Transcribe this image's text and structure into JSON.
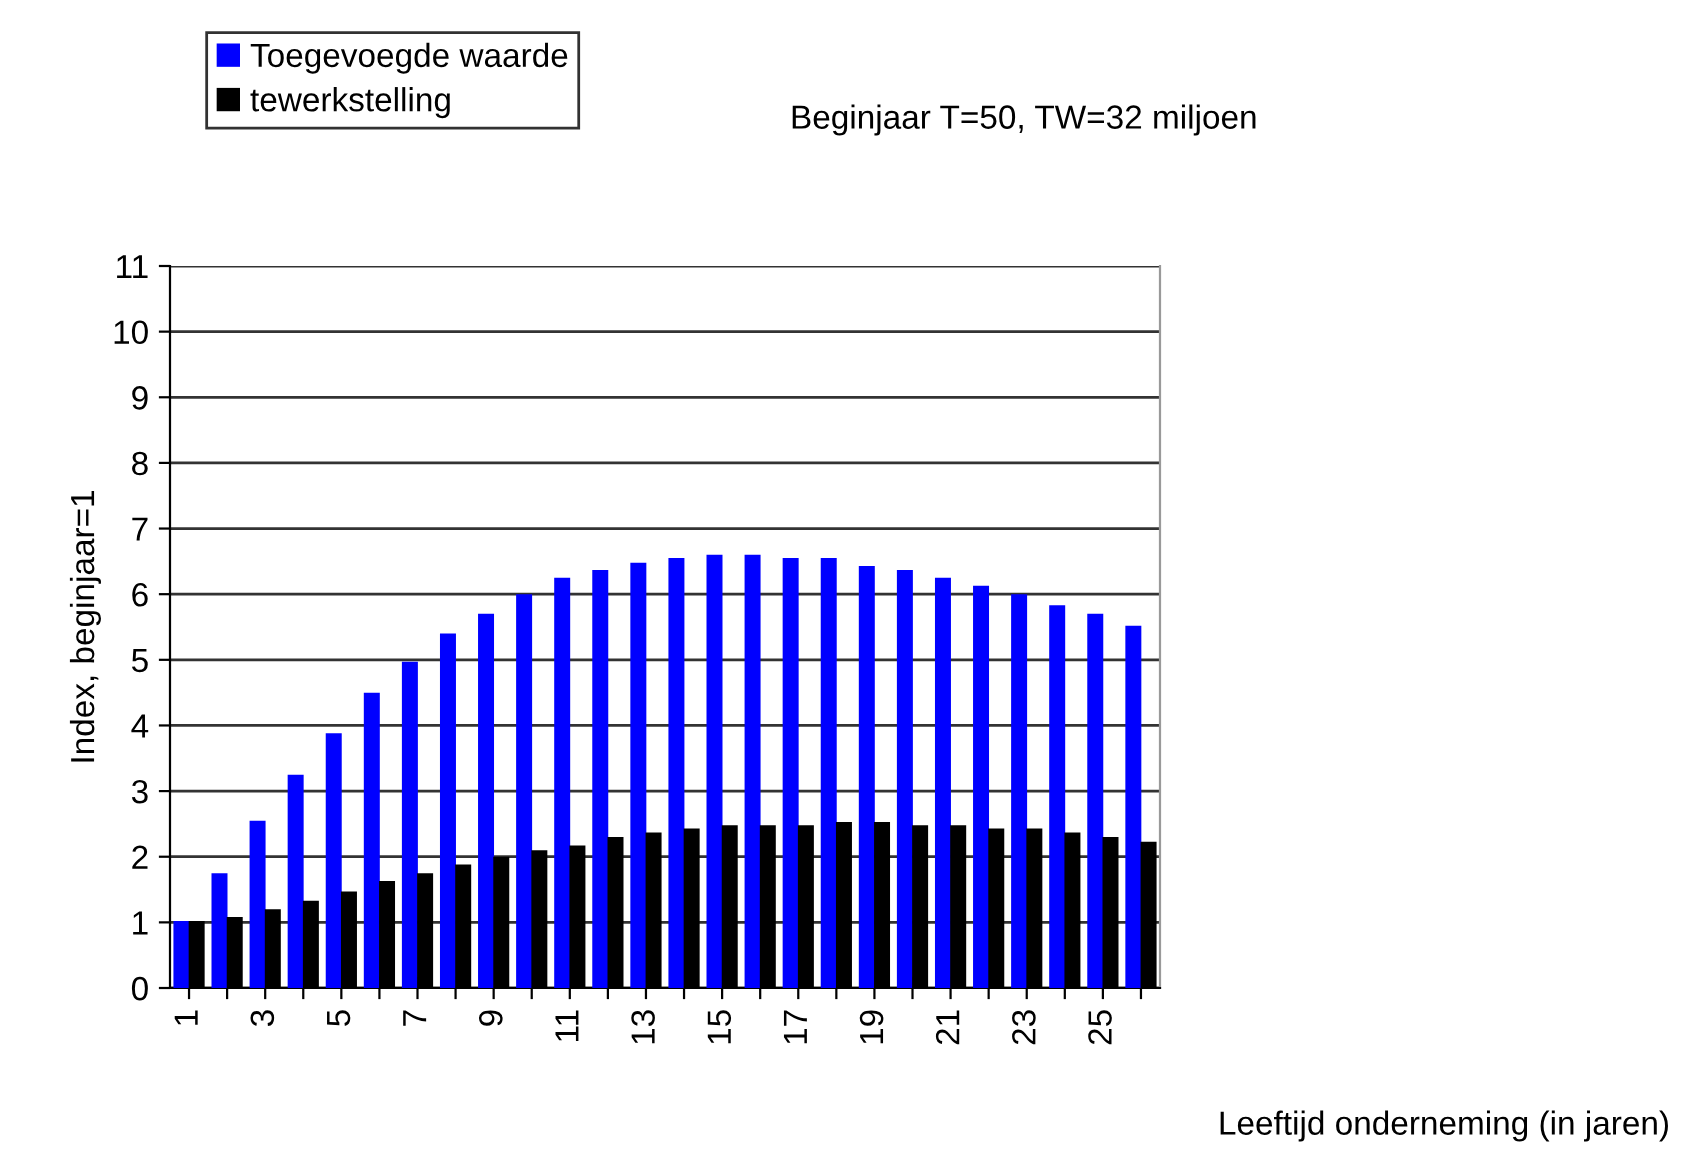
{
  "chart_data": {
    "type": "bar",
    "subtitle": "Beginjaar T=50, TW=32 miljoen",
    "xlabel": "Leeftijd onderneming (in jaren)",
    "ylabel": "Index, beginjaar=1",
    "categories": [
      "1",
      null,
      "3",
      null,
      "5",
      null,
      "7",
      null,
      "9",
      null,
      "11",
      null,
      "13",
      null,
      "15",
      null,
      "17",
      null,
      "19",
      null,
      "21",
      null,
      "23",
      null,
      "25",
      null
    ],
    "series": [
      {
        "name": "Toegevoegde waarde",
        "color": "#0000ff",
        "values": [
          1.02,
          1.75,
          2.55,
          3.25,
          3.88,
          4.5,
          4.97,
          5.4,
          5.7,
          6.0,
          6.25,
          6.37,
          6.48,
          6.55,
          6.6,
          6.6,
          6.55,
          6.55,
          6.43,
          6.37,
          6.25,
          6.13,
          6.0,
          5.83,
          5.7,
          5.52
        ]
      },
      {
        "name": "tewerkstelling",
        "color": "#000000",
        "values": [
          1.02,
          1.08,
          1.2,
          1.33,
          1.47,
          1.63,
          1.75,
          1.88,
          2.0,
          2.1,
          2.17,
          2.3,
          2.37,
          2.43,
          2.48,
          2.48,
          2.48,
          2.53,
          2.53,
          2.48,
          2.48,
          2.43,
          2.43,
          2.37,
          2.3,
          2.23
        ]
      }
    ],
    "ylim": [
      0,
      11
    ],
    "yticks": [
      0,
      1,
      2,
      3,
      4,
      5,
      6,
      7,
      8,
      9,
      10,
      11
    ],
    "grid": "y",
    "legend": "top left"
  }
}
